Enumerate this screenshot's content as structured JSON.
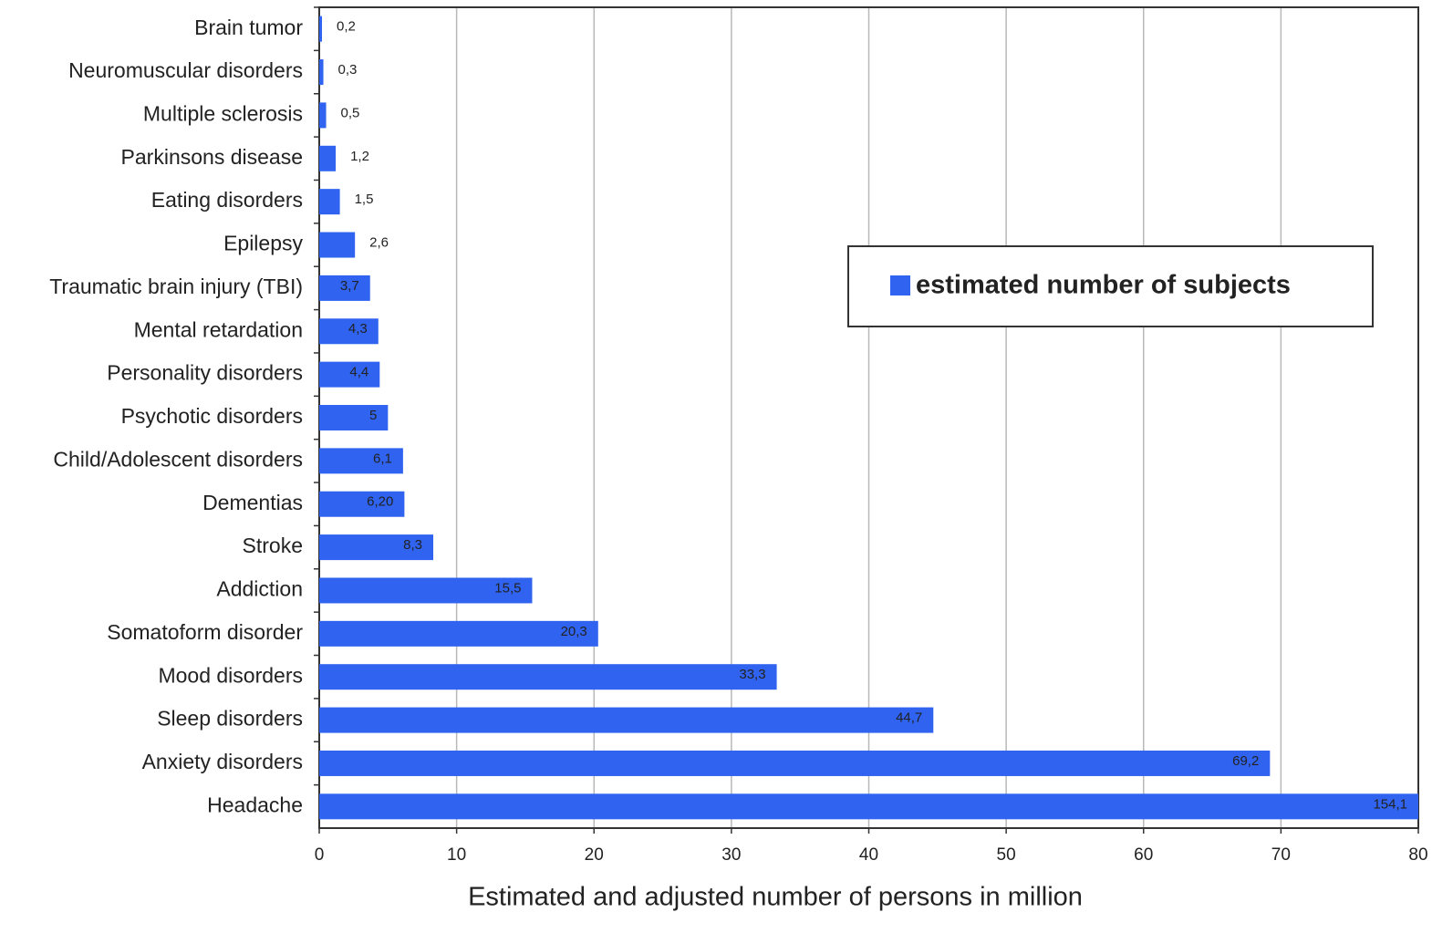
{
  "chart_data": {
    "type": "hbar",
    "xlabel": "Estimated and adjusted number of persons in million",
    "categories": [
      "Brain tumor",
      "Neuromuscular disorders",
      "Multiple sclerosis",
      "Parkinsons disease",
      "Eating disorders",
      "Epilepsy",
      "Traumatic brain injury (TBI)",
      "Mental retardation",
      "Personality disorders",
      "Psychotic disorders",
      "Child/Adolescent disorders",
      "Dementias",
      "Stroke",
      "Addiction",
      "Somatoform disorder",
      "Mood disorders",
      "Sleep disorders",
      "Anxiety disorders",
      "Headache"
    ],
    "series": [
      {
        "name": "estimated number of subjects",
        "color": "#2f63f0",
        "values": [
          0.2,
          0.3,
          0.5,
          1.2,
          1.5,
          2.6,
          3.7,
          4.3,
          4.4,
          5,
          6.1,
          6.2,
          8.3,
          15.5,
          20.3,
          33.3,
          44.7,
          69.2,
          154.1
        ],
        "value_labels": [
          "0,2",
          "0,3",
          "0,5",
          "1,2",
          "1,5",
          "2,6",
          "3,7",
          "4,3",
          "4,4",
          "5",
          "6,1",
          "6,20",
          "8,3",
          "15,5",
          "20,3",
          "33,3",
          "44,7",
          "69,2",
          "154,1"
        ]
      }
    ],
    "xlim": [
      0,
      80
    ],
    "xticks": [
      0,
      10,
      20,
      30,
      40,
      50,
      60,
      70,
      80
    ],
    "grid": true,
    "legend": "right"
  }
}
